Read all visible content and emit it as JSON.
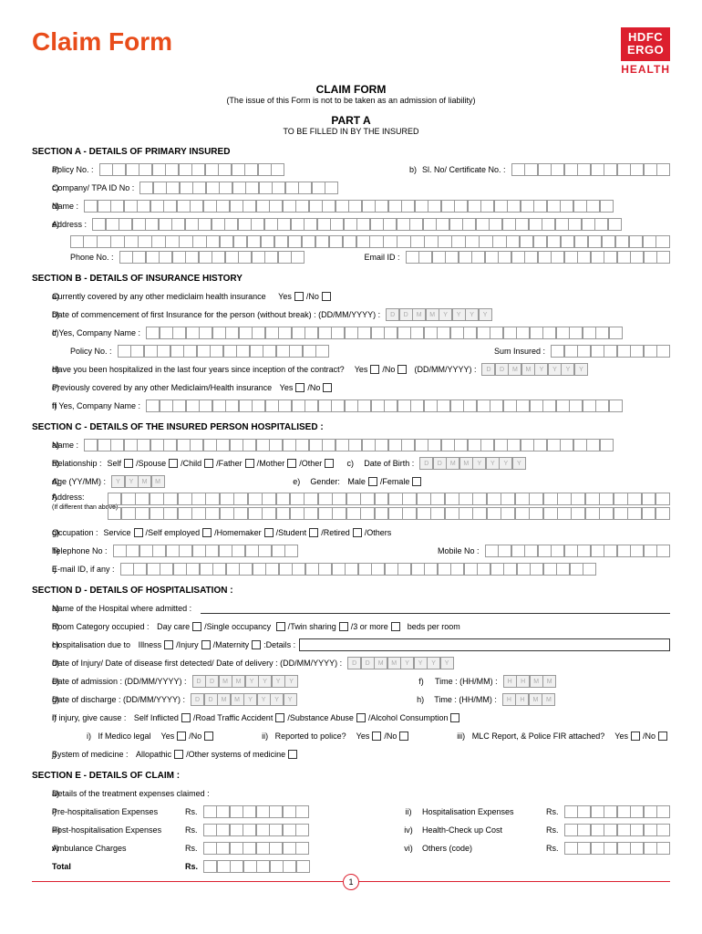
{
  "header": {
    "title": "Claim Form",
    "logo_line1": "HDFC",
    "logo_line2": "ERGO",
    "logo_sub": "HEALTH"
  },
  "form": {
    "title": "CLAIM FORM",
    "subtitle": "(The issue of this Form is not to be taken as an admission of liability)",
    "part": "PART A",
    "part_sub": "TO BE FILLED IN BY THE INSURED"
  },
  "secA": {
    "title": "SECTION A - DETAILS OF PRIMARY INSURED",
    "a": "Policy No. :",
    "b": "Sl. No/ Certificate No. :",
    "c": "Company/ TPA ID No :",
    "d": "Name :",
    "e": "Address :",
    "phone": "Phone No. :",
    "email": "Email ID :"
  },
  "secB": {
    "title": "SECTION B - DETAILS OF INSURANCE HISTORY",
    "a": "Currently covered by any other mediclaim health insurance",
    "b": "Date of commencement of first Insurance for the person (without break) :  (DD/MM/YYYY) :",
    "c": "If Yes,  Company Name :",
    "policy": "Policy No. :",
    "sum": "Sum Insured :",
    "d": "Have you been hospitalized in the last four years since inception of the contract?",
    "d2": "(DD/MM/YYYY) :",
    "e": "Previously covered by any other Mediclaim/Health insurance",
    "f": "If Yes,  Company Name :"
  },
  "secC": {
    "title": "SECTION C - DETAILS OF THE INSURED PERSON HOSPITALISED :",
    "a": "Name :",
    "b": "Relationship :",
    "dob": "Date of Birth :",
    "d": "Age (YY/MM) :",
    "e": "Gender:",
    "f": "Address:",
    "f2": "(If different than above)",
    "g": "Occupation :",
    "h": "Telephone No :",
    "h2": "Mobile No :",
    "i": "E-mail ID, if any :"
  },
  "secD": {
    "title": "SECTION D - DETAILS OF HOSPITALISATION :",
    "a": "Name of the Hospital where admitted :",
    "b": "Room Category occupied :",
    "b2": "beds per room",
    "c": "Hospitalisation due to",
    "c2": "Details :",
    "d": "Date of Injury/ Date of disease first detected/ Date of delivery :  (DD/MM/YYYY) :",
    "e": "Date of admission :  (DD/MM/YYYY) :",
    "f": "Time : (HH/MM) :",
    "g": "Date of discharge :  (DD/MM/YYYY) :",
    "h": "Time : (HH/MM) :",
    "i": "If injury, give cause :",
    "i1": "If  Medico legal",
    "i2": "Reported to police?",
    "i3": "MLC Report, & Police FIR attached?",
    "j": "System of medicine :"
  },
  "secE": {
    "title": "SECTION E - DETAILS OF CLAIM :",
    "a": "Details of the treatment expenses claimed  :",
    "i": "Pre-hospitalisation Expenses",
    "ii": "Hospitalisation Expenses",
    "iii": "Post-hospitalisation Expenses",
    "iv": "Health-Check up Cost",
    "v": "Ambulance Charges",
    "vi": "Others (code)",
    "total": "Total",
    "rs": "Rs."
  },
  "opt": {
    "yes": "Yes",
    "no": "No",
    "self": "Self",
    "spouse": "Spouse",
    "child": "Child",
    "father": "Father",
    "mother": "Mother",
    "other": "Other",
    "male": "Male",
    "female": "Female",
    "service": "Service",
    "selfemp": "Self employed",
    "homemaker": "Homemaker",
    "student": "Student",
    "retired": "Retired",
    "others": "Others",
    "daycare": "Day care",
    "single": "Single occupancy",
    "twin": "Twin sharing",
    "three": "3 or more",
    "illness": "Illness",
    "injury": "Injury",
    "maternity": "Maternity",
    "selfinf": "Self Inflicted",
    "rta": "Road Traffic Accident",
    "subst": "Substance Abuse",
    "alcohol": "Alcohol Consumption",
    "allo": "Allopathic",
    "othmed": "Other systems of medicine"
  },
  "page": "1"
}
